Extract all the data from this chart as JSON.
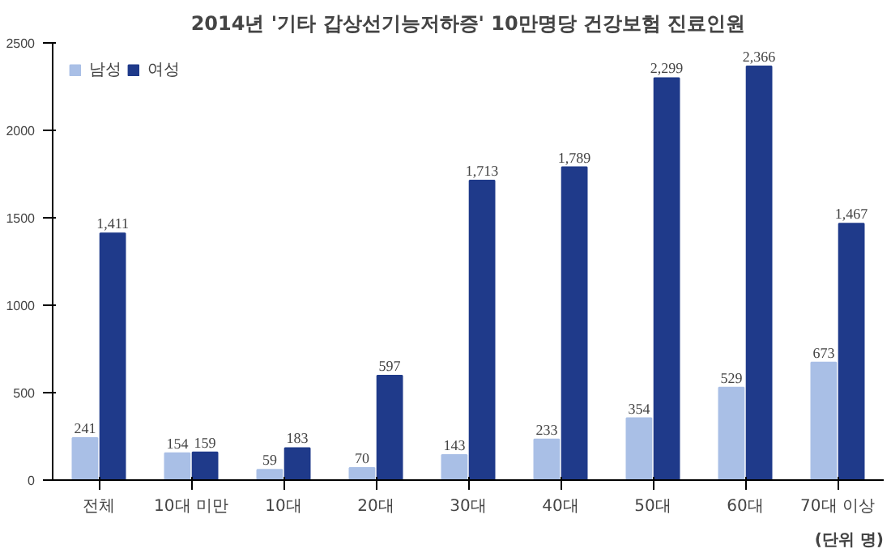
{
  "chart_data": {
    "type": "bar",
    "title": "2014년 '기타 갑상선기능저하증' 10만명당 건강보험 진료인원",
    "categories": [
      "전체",
      "10대 미만",
      "10대",
      "20대",
      "30대",
      "40대",
      "50대",
      "60대",
      "70대 이상"
    ],
    "series": [
      {
        "name": "남성",
        "color": "#a9bfe6",
        "values": [
          241,
          154,
          59,
          70,
          143,
          233,
          354,
          529,
          673
        ],
        "value_labels": [
          "241",
          "154",
          "59",
          "70",
          "143",
          "233",
          "354",
          "529",
          "673"
        ]
      },
      {
        "name": "여성",
        "color": "#1f3a8a",
        "values": [
          1411,
          159,
          183,
          597,
          1713,
          1789,
          2299,
          2366,
          1467
        ],
        "value_labels": [
          "1,411",
          "159",
          "183",
          "597",
          "1,713",
          "1,789",
          "2,299",
          "2,366",
          "1,467"
        ]
      }
    ],
    "ylim": [
      0,
      2500
    ],
    "yticks": [
      0,
      500,
      1000,
      1500,
      2000,
      2500
    ],
    "grid": false,
    "legend": "top left",
    "annotations": [
      "(단위 명)"
    ]
  }
}
